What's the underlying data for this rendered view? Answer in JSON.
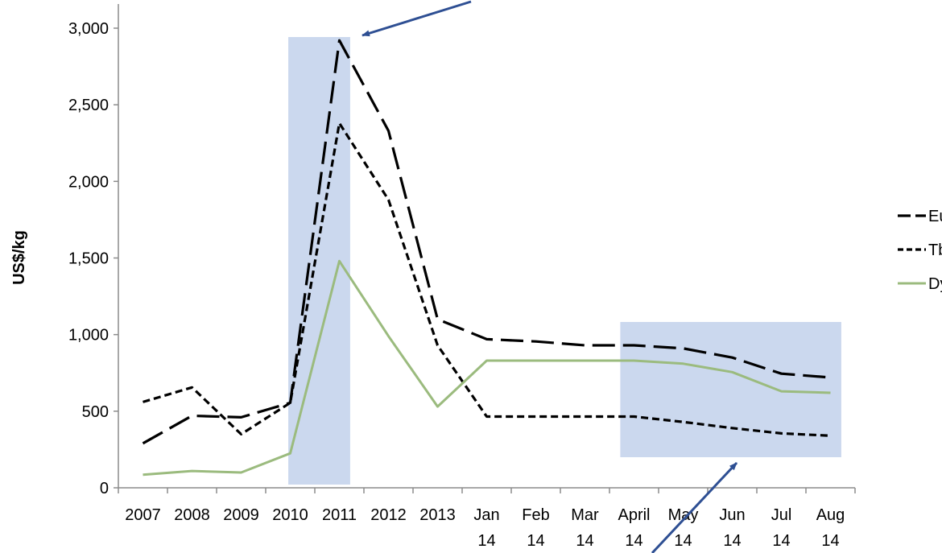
{
  "chart_data": {
    "type": "line",
    "title": "",
    "xlabel": "",
    "ylabel": "US$/kg",
    "ylim": [
      0,
      3000
    ],
    "yticks": [
      "0",
      "500",
      "1,000",
      "1,500",
      "2,000",
      "2,500",
      "3,000"
    ],
    "ytick_values": [
      0,
      500,
      1000,
      1500,
      2000,
      2500,
      3000
    ],
    "categories": [
      [
        "2007"
      ],
      [
        "2008"
      ],
      [
        "2009"
      ],
      [
        "2010"
      ],
      [
        "2011"
      ],
      [
        "2012"
      ],
      [
        "2013"
      ],
      [
        "Jan",
        "14"
      ],
      [
        "Feb",
        "14"
      ],
      [
        "Mar",
        "14"
      ],
      [
        "April",
        "14"
      ],
      [
        "May",
        "14"
      ],
      [
        "Jun",
        "14"
      ],
      [
        "Jul",
        "14"
      ],
      [
        "Aug",
        "14"
      ]
    ],
    "grid": false,
    "legend_position": "right",
    "series": [
      {
        "name": "Eu",
        "style": "long-dash",
        "color": "#000000",
        "values": [
          290,
          470,
          460,
          555,
          2920,
          2330,
          1100,
          970,
          955,
          930,
          930,
          910,
          850,
          745,
          720
        ]
      },
      {
        "name": "Tb",
        "style": "short-dash",
        "color": "#000000",
        "values": [
          560,
          655,
          350,
          555,
          2380,
          1880,
          930,
          465,
          465,
          465,
          465,
          430,
          390,
          355,
          340
        ]
      },
      {
        "name": "Dy",
        "style": "solid",
        "color": "#9bbb7e",
        "values": [
          85,
          110,
          100,
          225,
          1480,
          990,
          530,
          830,
          830,
          830,
          830,
          810,
          755,
          630,
          620
        ]
      }
    ],
    "highlights": [
      {
        "from_category": "2010",
        "to_category": "2011"
      },
      {
        "from_category": "April 14",
        "to_category": "Aug 14"
      }
    ]
  }
}
